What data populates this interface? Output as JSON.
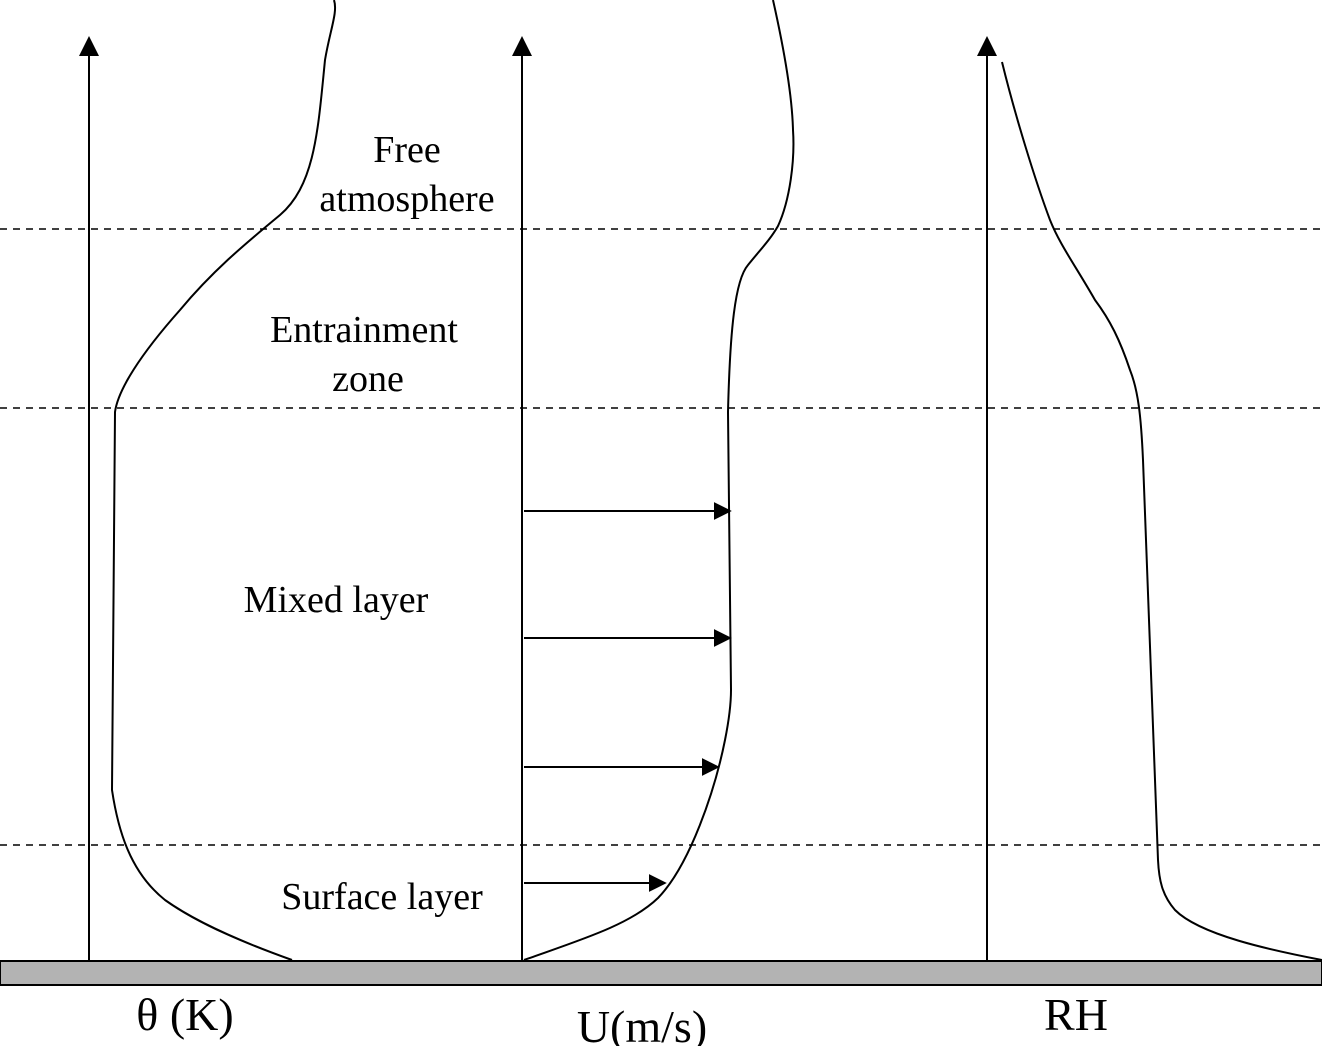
{
  "zones": {
    "free_line1": "Free",
    "free_line2": "atmosphere",
    "entrainment_line1": "Entrainment",
    "entrainment_line2": "zone",
    "mixed": "Mixed layer",
    "surface": "Surface layer"
  },
  "axes": {
    "theta": "θ (K)",
    "wind": "U(m/s)",
    "rh": "RH"
  },
  "colors": {
    "ground_fill": "#b3b3b3",
    "line": "#000000"
  }
}
